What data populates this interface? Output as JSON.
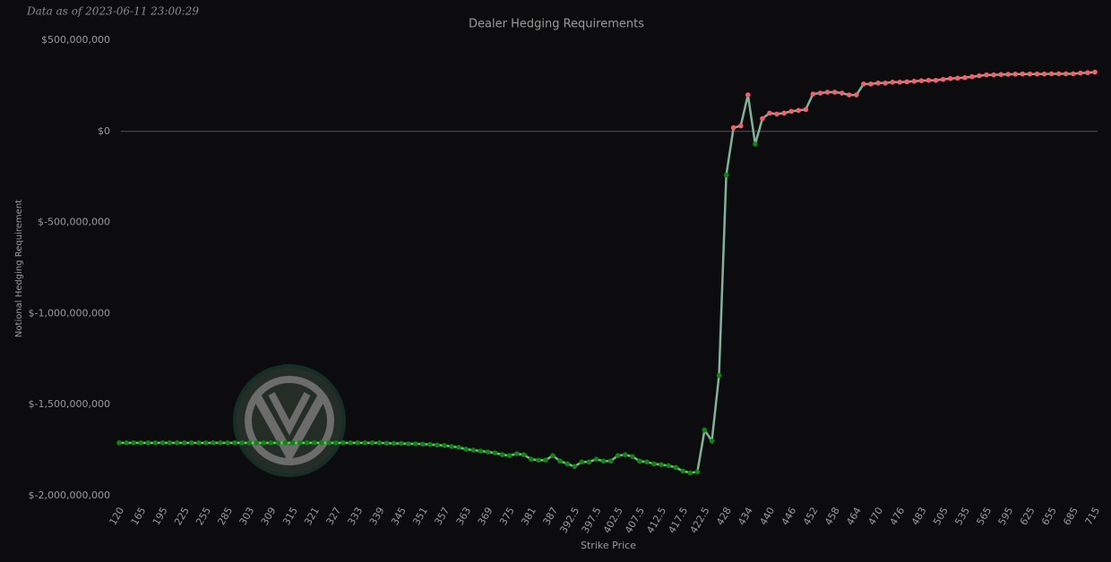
{
  "chart_data": {
    "type": "line",
    "title": "Dealer Hedging Requirements",
    "note": "Data as of 2023-06-11 23:00:29",
    "x_label": "Strike Price",
    "y_label": "Notional Hedging Requirement",
    "categories": [
      "120",
      null,
      null,
      "165",
      null,
      null,
      "195",
      null,
      null,
      "225",
      null,
      null,
      "255",
      null,
      null,
      "285",
      null,
      null,
      "303",
      null,
      null,
      "309",
      null,
      null,
      "315",
      null,
      null,
      "321",
      null,
      null,
      "327",
      null,
      null,
      "333",
      null,
      null,
      "339",
      null,
      null,
      "345",
      null,
      null,
      "351",
      null,
      null,
      "357",
      null,
      null,
      "363",
      null,
      null,
      "369",
      null,
      null,
      "375",
      null,
      null,
      "381",
      null,
      null,
      "387",
      null,
      null,
      "392.5",
      null,
      null,
      "397.5",
      null,
      null,
      "402.5",
      null,
      null,
      "407.5",
      null,
      null,
      "412.5",
      null,
      null,
      "417.5",
      null,
      null,
      "422.5",
      null,
      null,
      "428",
      null,
      null,
      "434",
      null,
      null,
      "440",
      null,
      null,
      "446",
      null,
      null,
      "452",
      null,
      null,
      "458",
      null,
      null,
      "464",
      null,
      null,
      "470",
      null,
      null,
      "476",
      null,
      null,
      "483",
      null,
      null,
      "505",
      null,
      null,
      "535",
      null,
      null,
      "565",
      null,
      null,
      "595",
      null,
      null,
      "625",
      null,
      null,
      "655",
      null,
      null,
      "685",
      null,
      null,
      "715"
    ],
    "values": [
      -1710000000,
      -1710000000,
      -1710000000,
      -1710000000,
      -1710000000,
      -1710000000,
      -1710000000,
      -1710000000,
      -1710000000,
      -1710000000,
      -1710000000,
      -1710000000,
      -1710000000,
      -1710000000,
      -1710000000,
      -1710000000,
      -1710000000,
      -1710000000,
      -1710000000,
      -1710000000,
      -1710000000,
      -1710000000,
      -1710000000,
      -1710000000,
      -1710000000,
      -1710000000,
      -1710000000,
      -1710000000,
      -1710000000,
      -1710000000,
      -1710000000,
      -1710000000,
      -1710000000,
      -1710000000,
      -1710000000,
      -1710000000,
      -1710000000,
      -1712000000,
      -1713000000,
      -1713000000,
      -1715000000,
      -1715000000,
      -1717000000,
      -1719000000,
      -1722000000,
      -1725000000,
      -1730000000,
      -1735000000,
      -1745000000,
      -1750000000,
      -1755000000,
      -1760000000,
      -1765000000,
      -1775000000,
      -1780000000,
      -1770000000,
      -1775000000,
      -1800000000,
      -1805000000,
      -1805000000,
      -1780000000,
      -1810000000,
      -1825000000,
      -1840000000,
      -1815000000,
      -1815000000,
      -1800000000,
      -1810000000,
      -1810000000,
      -1780000000,
      -1775000000,
      -1785000000,
      -1810000000,
      -1815000000,
      -1825000000,
      -1830000000,
      -1835000000,
      -1845000000,
      -1865000000,
      -1875000000,
      -1870000000,
      -1640000000,
      -1700000000,
      -1340000000,
      -240000000,
      20000000,
      30000000,
      200000000,
      -70000000,
      70000000,
      100000000,
      95000000,
      100000000,
      110000000,
      115000000,
      120000000,
      205000000,
      210000000,
      215000000,
      215000000,
      210000000,
      200000000,
      200000000,
      260000000,
      260000000,
      265000000,
      265000000,
      270000000,
      270000000,
      272000000,
      275000000,
      278000000,
      280000000,
      280000000,
      285000000,
      290000000,
      292000000,
      295000000,
      300000000,
      305000000,
      310000000,
      310000000,
      312000000,
      313000000,
      314000000,
      315000000,
      315000000,
      315000000,
      315000000,
      316000000,
      316000000,
      316000000,
      316000000,
      320000000,
      322000000,
      325000000
    ],
    "color": "#7fb39a",
    "positive_color": "#ff5a6a",
    "negative_color": "#0a8a0a",
    "ylim": [
      -2030000000,
      500000000
    ],
    "yticks": [
      {
        "value": -2000000000,
        "label": "$-2,000,000,000"
      },
      {
        "value": -1500000000,
        "label": "$-1,500,000,000"
      },
      {
        "value": -1000000000,
        "label": "$-1,000,000,000"
      },
      {
        "value": -500000000,
        "label": "$-500,000,000"
      },
      {
        "value": 0,
        "label": "$0"
      },
      {
        "value": 500000000,
        "label": "$500,000,000"
      }
    ],
    "zero_line": true,
    "grid": false
  }
}
